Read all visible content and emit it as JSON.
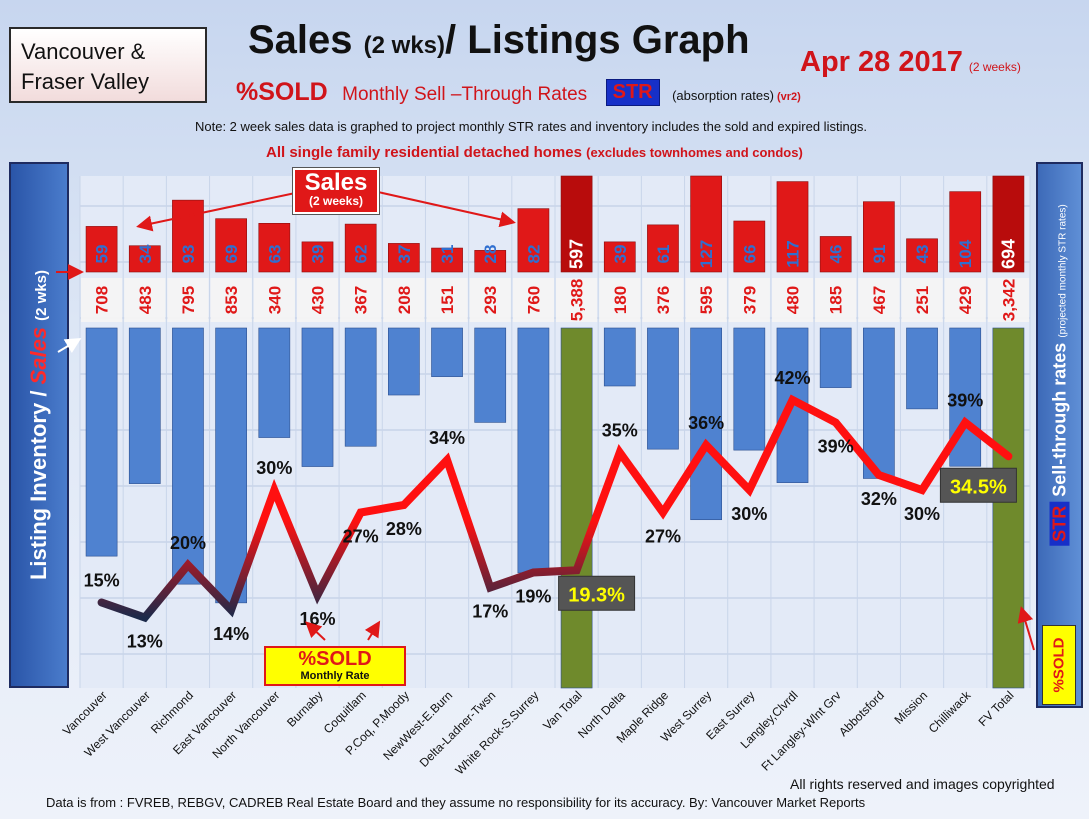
{
  "header": {
    "region_line1": "Vancouver  &",
    "region_line2": "Fraser Valley",
    "title_main": "Sales ",
    "title_small": "(2 wks)",
    "title_rest": "/ Listings Graph",
    "date": "Apr 28 2017",
    "date_note": "(2 weeks)",
    "sold_label": "%SOLD",
    "msr_label": "Monthly Sell –Through Rates",
    "str_label": "STR",
    "absorption_label": "(absorption rates)",
    "version_label": "(vr2)",
    "note": "Note: 2 week sales data is graphed to project monthly STR rates and inventory includes the sold and expired listings.",
    "subtitle": "All single family residential detached homes",
    "subtitle_small": "(excludes townhomes and condos)"
  },
  "left_axis": {
    "inventory_label": "Listing Inventory / ",
    "sales_label": "Sales",
    "period_label": "(2 wks)"
  },
  "right_axis": {
    "str_label": "STR",
    "sellthrough_label": "Sell-through rates",
    "projected_label": "(projected monthly STR rates)",
    "sold_label": "%SOLD"
  },
  "callouts": {
    "sales_big": "Sales",
    "sales_small": "(2 weeks)",
    "sold_big": "%SOLD",
    "sold_small": "Monthly Rate"
  },
  "footer": {
    "rights": "All rights reserved and  images copyrighted",
    "source": "Data is from : FVREB, REBGV, CADREB Real Estate Board and they assume no responsibility for its accuracy. By: Vancouver Market Reports"
  },
  "colors": {
    "sales_bar": "#e01818",
    "total_sales_bar": "#b80c0c",
    "inventory_bar": "#4f82d0",
    "total_inventory_bar": "#6f8a2c",
    "sales_label": "#2f6fd0",
    "line_low": "#1c2a4a",
    "line_high": "#ff1010"
  },
  "chart_data": {
    "type": "bar",
    "categories": [
      "Vancouver",
      "West Vancouver",
      "Richmond",
      "East Vancouver",
      "North Vancouver",
      "Burnaby",
      "Coquitlam",
      "P.Coq, P.Moody",
      "NewWest-E.Burn",
      "Delta-Ladner-Twsn",
      "White Rock-S.Surrey",
      "Van Total",
      "North Delta",
      "Maple Ridge",
      "West Surrey",
      "East Surrey",
      "Langley,Clvrdl",
      "Ft Langley-Wlnt Grv",
      "Abbotsford",
      "Mission",
      "Chilliwack",
      "FV Total"
    ],
    "sales": [
      "59",
      "34",
      "93",
      "69",
      "63",
      "39",
      "62",
      "37",
      "31",
      "28",
      "82",
      "597",
      "39",
      "61",
      "127",
      "66",
      "117",
      "46",
      "91",
      "43",
      "104",
      "694"
    ],
    "inventory": [
      "708",
      "483",
      "795",
      "853",
      "340",
      "430",
      "367",
      "208",
      "151",
      "293",
      "760",
      "5,388",
      "180",
      "376",
      "595",
      "379",
      "480",
      "185",
      "467",
      "251",
      "429",
      "3,342"
    ],
    "str_labels": [
      "15%",
      "13%",
      "20%",
      "14%",
      "30%",
      "16%",
      "27%",
      "28%",
      "34%",
      "17%",
      "19%",
      "19.3%",
      "35%",
      "27%",
      "36%",
      "30%",
      "42%",
      "39%",
      "32%",
      "30%",
      "39%",
      "34.5%"
    ],
    "str_values": [
      15,
      13,
      20,
      14,
      30,
      16,
      27,
      28,
      34,
      17,
      19,
      19.3,
      35,
      27,
      36,
      30,
      42,
      39,
      32,
      30,
      39,
      34.5
    ],
    "totals": [
      "Van Total",
      "FV Total"
    ]
  }
}
